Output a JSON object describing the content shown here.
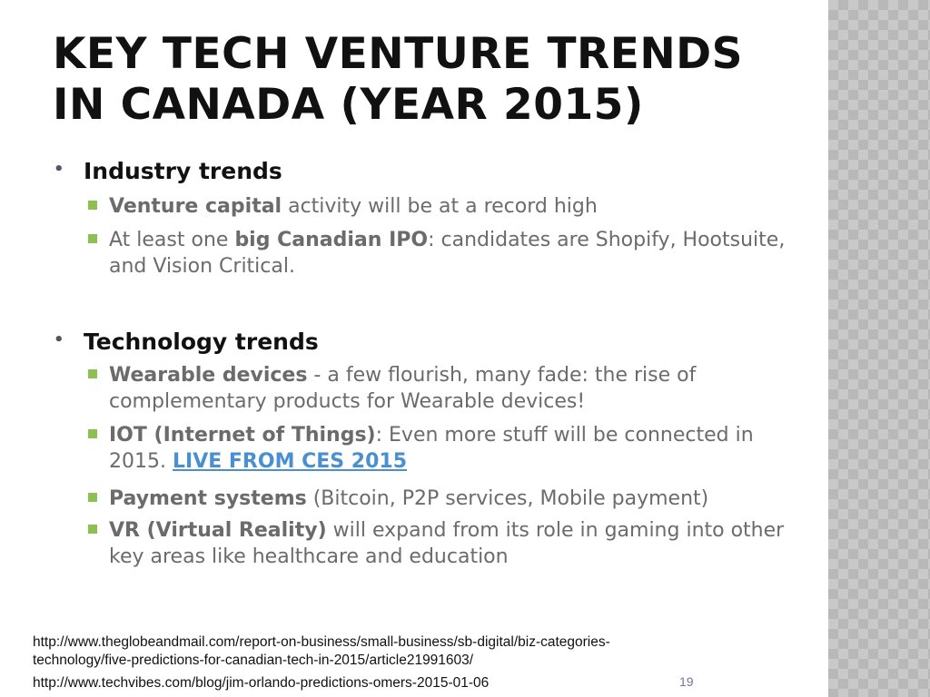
{
  "slide": {
    "title": "KEY TECH VENTURE TRENDS IN CANADA (YEAR 2015)",
    "sections": [
      {
        "heading": "Industry trends",
        "items": [
          {
            "bold": "Venture capital",
            "rest": " activity will be at a record high"
          },
          {
            "pre": "At least one ",
            "bold": "big Canadian IPO",
            "rest": ": candidates are Shopify, Hootsuite, and Vision Critical."
          }
        ]
      },
      {
        "heading": "Technology trends",
        "items": [
          {
            "bold": "Wearable devices",
            "rest": " - a few flourish, many fade: the rise of complementary products for Wearable devices!"
          },
          {
            "bold": "IOT (Internet of Things)",
            "rest": ": Even more stuff will be connected in 2015. ",
            "link": "LIVE FROM CES 2015"
          },
          {
            "bold": "Payment systems",
            "rest": " (Bitcoin, P2P services, Mobile payment)"
          },
          {
            "bold": "VR (Virtual Reality)",
            "rest": " will expand from its role in gaming into other key areas like healthcare and education"
          }
        ]
      }
    ],
    "sources": [
      "http://www.theglobeandmail.com/report-on-business/small-business/sb-digital/biz-categories-technology/five-predictions-for-canadian-tech-in-2015/article21991603/",
      "http://www.techvibes.com/blog/jim-orlando-predictions-omers-2015-01-06"
    ],
    "page_number": "19"
  },
  "colors": {
    "bullet_square": "#8cc152",
    "link": "#4a8fcf",
    "body_text": "#6b6b6b"
  }
}
